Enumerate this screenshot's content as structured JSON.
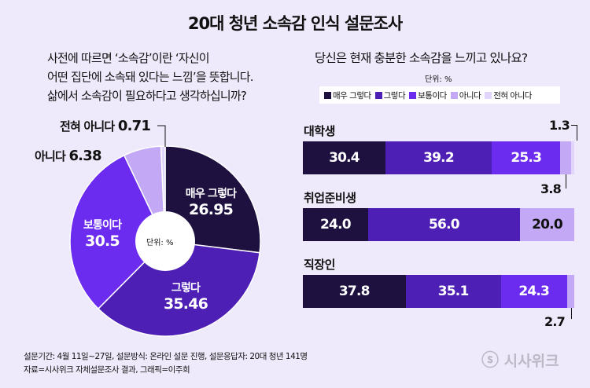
{
  "title": "20대 청년 소속감 인식 설문조사",
  "colors": {
    "very_agree": "#1e1140",
    "agree": "#4d1fb5",
    "neutral": "#6b2cf0",
    "disagree": "#c3a9f5",
    "strongly_disagree": "#e1d5fb",
    "background": "#efeafb"
  },
  "left_question": [
    "사전에 따르면 ‘소속감’이란 ‘자신이",
    "어떤 집단에 소속돼 있다는 느낌’을 뜻합니다.",
    "삶에서 소속감이 필요하다고 생각하십니까?"
  ],
  "right_question": "당신은 현재 충분한 소속감을 느끼고 있나요?",
  "unit": "단위: %",
  "legend": [
    "매우 그렇다",
    "그렇다",
    "보통이다",
    "아니다",
    "전혀 아니다"
  ],
  "footer": [
    "설문기간: 4월 11일~27일, 설문방식: 온라인 설문 진행, 설문응답자: 20대 청년 141명",
    "자료=시사위크 자체설문조사 결과, 그래픽=이주희"
  ],
  "logo": "시사위크",
  "chart_data": [
    {
      "type": "pie",
      "unit": "단위: %",
      "categories": [
        "매우 그렇다",
        "그렇다",
        "보통이다",
        "아니다",
        "전혀 아니다"
      ],
      "values": [
        26.95,
        35.46,
        30.5,
        6.38,
        0.71
      ],
      "labels": [
        "26.95",
        "35.46",
        "30.5",
        "6.38",
        "0.71"
      ],
      "start": "top",
      "direction": "clockwise",
      "donut_hole_label": "단위: %"
    },
    {
      "type": "bar",
      "orientation": "horizontal",
      "stacked": true,
      "unit": "단위: %",
      "categories": [
        "대학생",
        "취업준비생",
        "직장인"
      ],
      "series": [
        {
          "name": "매우 그렇다",
          "values": [
            30.4,
            24.0,
            37.8
          ],
          "labels": [
            "30.4",
            "24.0",
            "37.8"
          ]
        },
        {
          "name": "그렇다",
          "values": [
            39.2,
            56.0,
            35.1
          ],
          "labels": [
            "39.2",
            "56.0",
            "35.1"
          ]
        },
        {
          "name": "보통이다",
          "values": [
            25.3,
            0,
            24.3
          ],
          "labels": [
            "25.3",
            "",
            "24.3"
          ]
        },
        {
          "name": "아니다",
          "values": [
            3.8,
            20.0,
            2.7
          ],
          "labels": [
            "3.8",
            "20.0",
            "2.7"
          ]
        },
        {
          "name": "전혀 아니다",
          "values": [
            1.3,
            0,
            0
          ],
          "labels": [
            "1.3",
            "",
            ""
          ]
        }
      ],
      "legend": "top"
    }
  ]
}
